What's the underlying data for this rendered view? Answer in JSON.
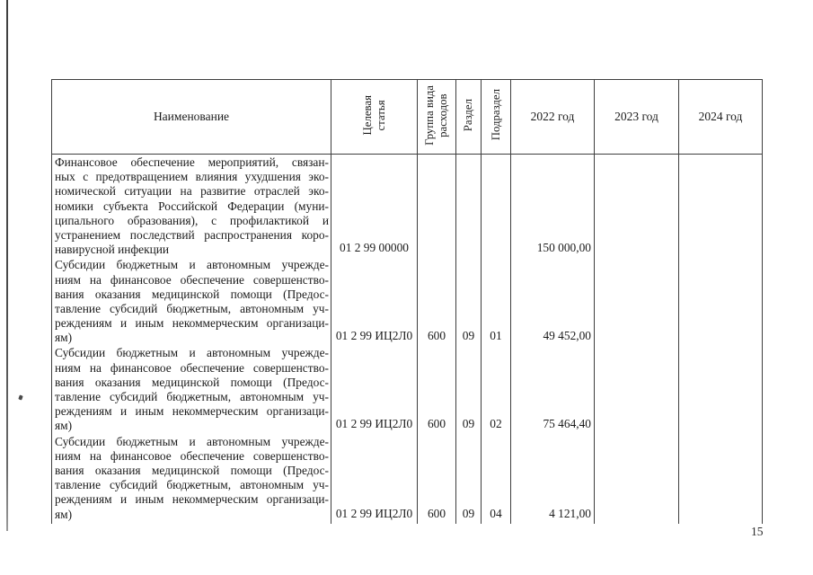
{
  "document": {
    "page_number": "15"
  },
  "table": {
    "headers": {
      "name": "Наименование",
      "target_article": "Целевая\nстатья",
      "expense_type_group": "Группа вида\nрасходов",
      "section": "Раздел",
      "subsection": "Подраздел",
      "year2022": "2022 год",
      "year2023": "2023 год",
      "year2024": "2024 год"
    },
    "rows": [
      {
        "name_lines": [
          "Финансовое обеспечение мероприятий, связан-",
          "ных с предотвращением влияния ухудшения эко-",
          "номической ситуации на развитие отраслей эко-",
          "номики субъекта Российской Федерации (муни-",
          "ципального образования), с профилактикой и",
          "устранением последствий распространения коро-",
          "навирусной инфекции"
        ],
        "target_article": "01 2 99 00000",
        "expense_type_group": "",
        "section": "",
        "subsection": "",
        "year2022": "150 000,00",
        "year2023": "",
        "year2024": ""
      },
      {
        "name_lines": [
          "Субсидии бюджетным и автономным учрежде-",
          "ниям на финансовое обеспечение совершенство-",
          "вания оказания медицинской помощи (Предос-",
          "тавление субсидий бюджетным, автономным уч-",
          "реждениям и иным некоммерческим организаци-",
          "ям)"
        ],
        "target_article": "01 2 99 ИЦ2Л0",
        "expense_type_group": "600",
        "section": "09",
        "subsection": "01",
        "year2022": "49 452,00",
        "year2023": "",
        "year2024": ""
      },
      {
        "name_lines": [
          "Субсидии бюджетным и автономным учрежде-",
          "ниям на финансовое обеспечение совершенство-",
          "вания оказания медицинской помощи (Предос-",
          "тавление субсидий бюджетным, автономным уч-",
          "реждениям и иным некоммерческим организаци-",
          "ям)"
        ],
        "target_article": "01 2 99 ИЦ2Л0",
        "expense_type_group": "600",
        "section": "09",
        "subsection": "02",
        "year2022": "75 464,40",
        "year2023": "",
        "year2024": ""
      },
      {
        "name_lines": [
          "Субсидии бюджетным и автономным учрежде-",
          "ниям на финансовое обеспечение совершенство-",
          "вания оказания медицинской помощи (Предос-",
          "тавление субсидий бюджетным, автономным уч-",
          "реждениям и иным некоммерческим организаци-",
          "ям)"
        ],
        "target_article": "01 2 99 ИЦ2Л0",
        "expense_type_group": "600",
        "section": "09",
        "subsection": "04",
        "year2022": "4 121,00",
        "year2023": "",
        "year2024": ""
      }
    ]
  }
}
